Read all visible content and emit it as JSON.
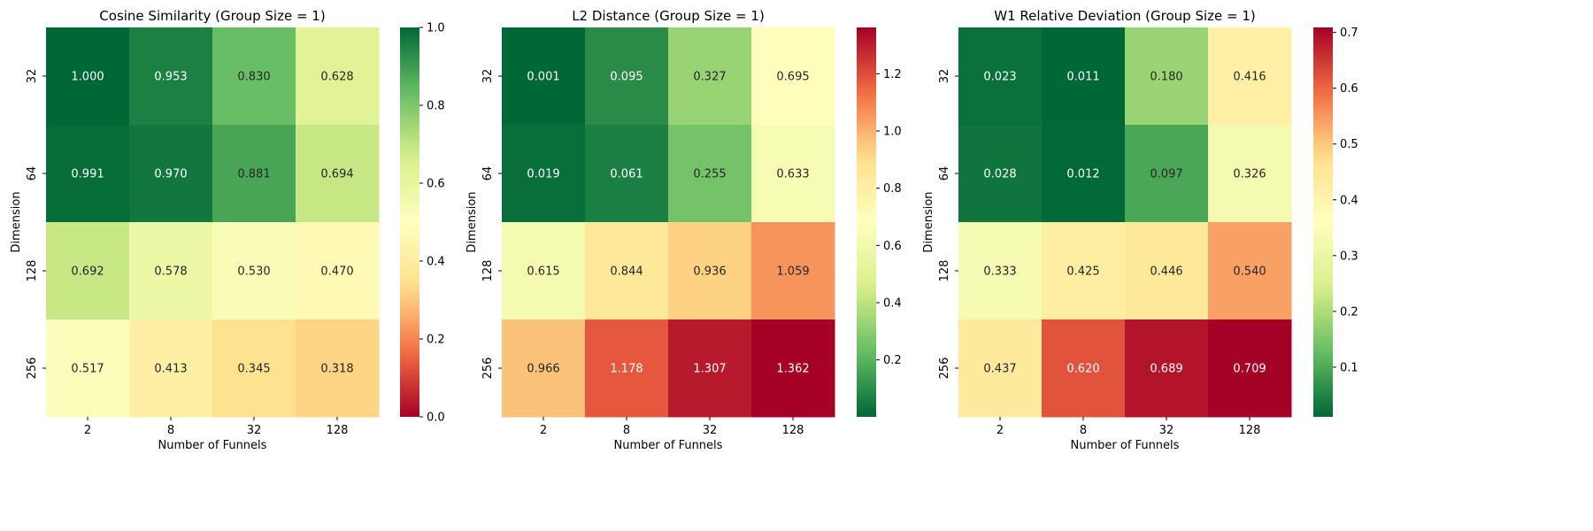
{
  "figure": {
    "colormap_stops": [
      "#a50026",
      "#f46d43",
      "#fee08b",
      "#ffffbf",
      "#d9ef8b",
      "#66bd63",
      "#006837"
    ]
  },
  "chart_data": [
    {
      "type": "heatmap",
      "title": "Cosine Similarity (Group Size = 1)",
      "xlabel": "Number of Funnels",
      "ylabel": "Dimension",
      "x_categories": [
        "2",
        "8",
        "32",
        "128"
      ],
      "y_categories": [
        "32",
        "64",
        "128",
        "256"
      ],
      "values": [
        [
          1.0,
          0.953,
          0.83,
          0.628
        ],
        [
          0.991,
          0.97,
          0.881,
          0.694
        ],
        [
          0.692,
          0.578,
          0.53,
          0.47
        ],
        [
          0.517,
          0.413,
          0.345,
          0.318
        ]
      ],
      "value_labels": [
        [
          "1.000",
          "0.953",
          "0.830",
          "0.628"
        ],
        [
          "0.991",
          "0.970",
          "0.881",
          "0.694"
        ],
        [
          "0.692",
          "0.578",
          "0.530",
          "0.470"
        ],
        [
          "0.517",
          "0.413",
          "0.345",
          "0.318"
        ]
      ],
      "colormap": "RdYlGn",
      "vmin": 0.0,
      "vmax": 1.0,
      "colorbar_ticks": [
        0.0,
        0.2,
        0.4,
        0.6,
        0.8,
        1.0
      ],
      "colorbar_tick_labels": [
        "0.0",
        "0.2",
        "0.4",
        "0.6",
        "0.8",
        "1.0"
      ]
    },
    {
      "type": "heatmap",
      "title": "L2 Distance (Group Size = 1)",
      "xlabel": "Number of Funnels",
      "ylabel": "Dimension",
      "x_categories": [
        "2",
        "8",
        "32",
        "128"
      ],
      "y_categories": [
        "32",
        "64",
        "128",
        "256"
      ],
      "values": [
        [
          0.001,
          0.095,
          0.327,
          0.695
        ],
        [
          0.019,
          0.061,
          0.255,
          0.633
        ],
        [
          0.615,
          0.844,
          0.936,
          1.059
        ],
        [
          0.966,
          1.178,
          1.307,
          1.362
        ]
      ],
      "value_labels": [
        [
          "0.001",
          "0.095",
          "0.327",
          "0.695"
        ],
        [
          "0.019",
          "0.061",
          "0.255",
          "0.633"
        ],
        [
          "0.615",
          "0.844",
          "0.936",
          "1.059"
        ],
        [
          "0.966",
          "1.178",
          "1.307",
          "1.362"
        ]
      ],
      "colormap": "RdYlGn_r",
      "vmin": 0.001,
      "vmax": 1.362,
      "colorbar_ticks": [
        0.2,
        0.4,
        0.6,
        0.8,
        1.0,
        1.2
      ],
      "colorbar_tick_labels": [
        "0.2",
        "0.4",
        "0.6",
        "0.8",
        "1.0",
        "1.2"
      ]
    },
    {
      "type": "heatmap",
      "title": "W1 Relative Deviation (Group Size = 1)",
      "xlabel": "Number of Funnels",
      "ylabel": "Dimension",
      "x_categories": [
        "2",
        "8",
        "32",
        "128"
      ],
      "y_categories": [
        "32",
        "64",
        "128",
        "256"
      ],
      "values": [
        [
          0.023,
          0.011,
          0.18,
          0.416
        ],
        [
          0.028,
          0.012,
          0.097,
          0.326
        ],
        [
          0.333,
          0.425,
          0.446,
          0.54
        ],
        [
          0.437,
          0.62,
          0.689,
          0.709
        ]
      ],
      "value_labels": [
        [
          "0.023",
          "0.011",
          "0.180",
          "0.416"
        ],
        [
          "0.028",
          "0.012",
          "0.097",
          "0.326"
        ],
        [
          "0.333",
          "0.425",
          "0.446",
          "0.540"
        ],
        [
          "0.437",
          "0.620",
          "0.689",
          "0.709"
        ]
      ],
      "colormap": "RdYlGn_r",
      "vmin": 0.011,
      "vmax": 0.709,
      "colorbar_ticks": [
        0.1,
        0.2,
        0.3,
        0.4,
        0.5,
        0.6,
        0.7
      ],
      "colorbar_tick_labels": [
        "0.1",
        "0.2",
        "0.3",
        "0.4",
        "0.5",
        "0.6",
        "0.7"
      ]
    }
  ]
}
